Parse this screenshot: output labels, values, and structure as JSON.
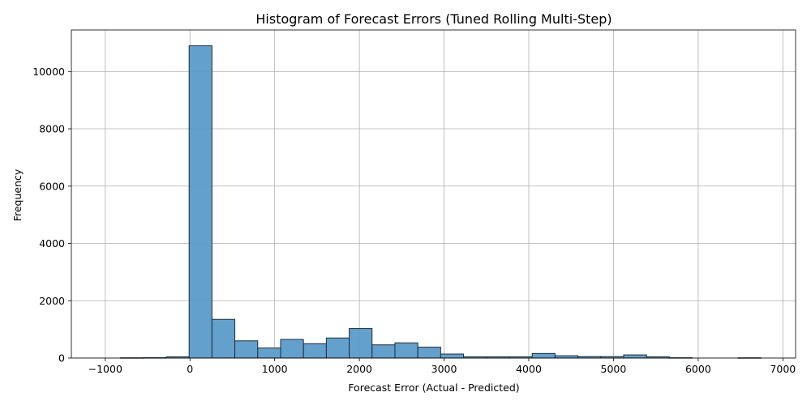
{
  "chart_data": {
    "type": "bar",
    "title": "Histogram of Forecast Errors (Tuned Rolling Multi-Step)",
    "xlabel": "Forecast Error (Actual - Predicted)",
    "ylabel": "Frequency",
    "xlim": [
      -1400,
      7150
    ],
    "ylim": [
      0,
      11450
    ],
    "xticks": [
      -1000,
      0,
      1000,
      2000,
      3000,
      4000,
      5000,
      6000,
      7000
    ],
    "xtick_labels": [
      "−1000",
      "0",
      "1000",
      "2000",
      "3000",
      "4000",
      "5000",
      "6000",
      "7000"
    ],
    "yticks": [
      0,
      2000,
      4000,
      6000,
      8000,
      10000
    ],
    "ytick_labels": [
      "0",
      "2000",
      "4000",
      "6000",
      "8000",
      "10000"
    ],
    "grid": true,
    "bar_color": "#5b9bc8",
    "edge_color": "#1f2f3f",
    "bins": [
      {
        "x0": -1360,
        "x1": -1090,
        "count": 0
      },
      {
        "x0": -1090,
        "x1": -820,
        "count": 0
      },
      {
        "x0": -820,
        "x1": -550,
        "count": 8
      },
      {
        "x0": -550,
        "x1": -280,
        "count": 12
      },
      {
        "x0": -280,
        "x1": -10,
        "count": 40
      },
      {
        "x0": -10,
        "x1": 260,
        "count": 10900
      },
      {
        "x0": 260,
        "x1": 530,
        "count": 1350
      },
      {
        "x0": 530,
        "x1": 800,
        "count": 600
      },
      {
        "x0": 800,
        "x1": 1070,
        "count": 350
      },
      {
        "x0": 1070,
        "x1": 1340,
        "count": 650
      },
      {
        "x0": 1340,
        "x1": 1610,
        "count": 500
      },
      {
        "x0": 1610,
        "x1": 1880,
        "count": 700
      },
      {
        "x0": 1880,
        "x1": 2150,
        "count": 1030
      },
      {
        "x0": 2150,
        "x1": 2420,
        "count": 460
      },
      {
        "x0": 2420,
        "x1": 2690,
        "count": 530
      },
      {
        "x0": 2690,
        "x1": 2960,
        "count": 380
      },
      {
        "x0": 2960,
        "x1": 3230,
        "count": 140
      },
      {
        "x0": 3230,
        "x1": 3500,
        "count": 40
      },
      {
        "x0": 3500,
        "x1": 3770,
        "count": 40
      },
      {
        "x0": 3770,
        "x1": 4040,
        "count": 40
      },
      {
        "x0": 4040,
        "x1": 4310,
        "count": 160
      },
      {
        "x0": 4310,
        "x1": 4580,
        "count": 80
      },
      {
        "x0": 4580,
        "x1": 4850,
        "count": 50
      },
      {
        "x0": 4850,
        "x1": 5120,
        "count": 50
      },
      {
        "x0": 5120,
        "x1": 5390,
        "count": 110
      },
      {
        "x0": 5390,
        "x1": 5660,
        "count": 40
      },
      {
        "x0": 5660,
        "x1": 5930,
        "count": 10
      },
      {
        "x0": 5930,
        "x1": 6200,
        "count": 0
      },
      {
        "x0": 6200,
        "x1": 6470,
        "count": 0
      },
      {
        "x0": 6470,
        "x1": 6740,
        "count": 8
      }
    ]
  }
}
